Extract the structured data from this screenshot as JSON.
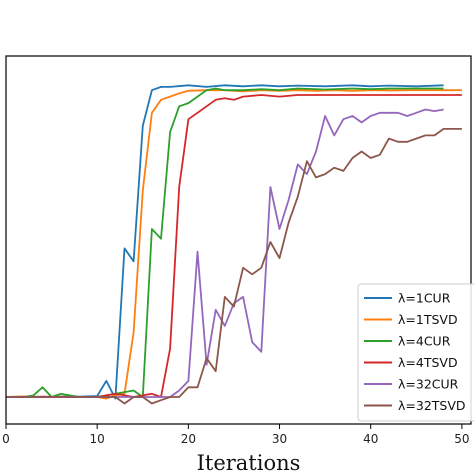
{
  "chart_data": {
    "type": "line",
    "title": "",
    "xlabel": "Iterations",
    "ylabel": "",
    "xlim": [
      0,
      51
    ],
    "ylim": [
      0,
      1
    ],
    "xticks": [
      "0",
      "10",
      "20",
      "30",
      "40",
      "50"
    ],
    "grid": false,
    "legend_position": "lower-right",
    "series": [
      {
        "name": "λ=1CUR",
        "color": "#1f77b4",
        "x": [
          0,
          2,
          4,
          6,
          8,
          10,
          11,
          12,
          13,
          14,
          15,
          16,
          17,
          18,
          20,
          22,
          24,
          26,
          28,
          30,
          32,
          35,
          38,
          40,
          42,
          45,
          48
        ],
        "y": [
          0.0,
          0.001,
          0.0,
          0.002,
          0.001,
          0.003,
          0.05,
          -0.005,
          0.46,
          0.42,
          0.84,
          0.95,
          0.96,
          0.96,
          0.965,
          0.96,
          0.965,
          0.962,
          0.965,
          0.962,
          0.964,
          0.962,
          0.965,
          0.962,
          0.964,
          0.962,
          0.965
        ]
      },
      {
        "name": "λ=1TSVD",
        "color": "#ff7f0e",
        "x": [
          0,
          2,
          4,
          6,
          8,
          10,
          11,
          12,
          13,
          14,
          15,
          16,
          17,
          18,
          19,
          20,
          22,
          24,
          26,
          28,
          30,
          32,
          34,
          36,
          38,
          40,
          42,
          44,
          46,
          48,
          50
        ],
        "y": [
          0.0,
          0.002,
          0.0,
          0.001,
          0.0,
          0.0,
          -0.005,
          0.005,
          0.01,
          0.2,
          0.64,
          0.88,
          0.92,
          0.93,
          0.94,
          0.948,
          0.95,
          0.95,
          0.946,
          0.95,
          0.948,
          0.95,
          0.948,
          0.95,
          0.948,
          0.95,
          0.949,
          0.95,
          0.95,
          0.95,
          0.95
        ]
      },
      {
        "name": "λ=4CUR",
        "color": "#2ca02c",
        "x": [
          0,
          2,
          3,
          4,
          5,
          6,
          8,
          10,
          12,
          14,
          15,
          16,
          17,
          18,
          19,
          20,
          21,
          22,
          23,
          24,
          26,
          28,
          30,
          32,
          35,
          38,
          40,
          42,
          45,
          48
        ],
        "y": [
          0.0,
          0.0,
          0.005,
          0.03,
          0.0,
          0.01,
          0.0,
          0.0,
          0.01,
          0.02,
          0.0,
          0.52,
          0.49,
          0.82,
          0.9,
          0.91,
          0.93,
          0.95,
          0.955,
          0.95,
          0.95,
          0.953,
          0.95,
          0.955,
          0.952,
          0.955,
          0.953,
          0.955,
          0.955,
          0.955
        ]
      },
      {
        "name": "λ=4TSVD",
        "color": "#d62728",
        "x": [
          0,
          2,
          4,
          6,
          8,
          10,
          12,
          14,
          15,
          16,
          17,
          18,
          19,
          20,
          21,
          22,
          23,
          24,
          25,
          26,
          28,
          30,
          32,
          34,
          36,
          38,
          40,
          42,
          44,
          46,
          48,
          50
        ],
        "y": [
          0.0,
          0.0,
          0.001,
          0.0,
          0.0,
          0.0,
          0.01,
          0.0,
          0.005,
          0.01,
          0.0,
          0.15,
          0.65,
          0.86,
          0.88,
          0.9,
          0.92,
          0.925,
          0.92,
          0.93,
          0.935,
          0.93,
          0.935,
          0.935,
          0.935,
          0.935,
          0.935,
          0.935,
          0.935,
          0.935,
          0.935,
          0.935
        ]
      },
      {
        "name": "λ=32CUR",
        "color": "#9467bd",
        "x": [
          0,
          5,
          10,
          15,
          18,
          19,
          20,
          21,
          22,
          23,
          24,
          25,
          26,
          27,
          28,
          29,
          30,
          31,
          32,
          33,
          34,
          35,
          36,
          37,
          38,
          39,
          40,
          41,
          42,
          43,
          44,
          45,
          46,
          47,
          48
        ],
        "y": [
          0.0,
          0.0,
          0.0,
          0.0,
          0.0,
          0.02,
          0.05,
          0.45,
          0.1,
          0.27,
          0.22,
          0.29,
          0.31,
          0.17,
          0.14,
          0.65,
          0.52,
          0.61,
          0.72,
          0.69,
          0.76,
          0.87,
          0.81,
          0.86,
          0.87,
          0.85,
          0.87,
          0.88,
          0.88,
          0.88,
          0.87,
          0.88,
          0.89,
          0.885,
          0.89
        ]
      },
      {
        "name": "λ=32TSVD",
        "color": "#8c564b",
        "x": [
          0,
          5,
          10,
          12,
          13,
          14,
          15,
          16,
          17,
          18,
          19,
          20,
          21,
          22,
          23,
          24,
          25,
          26,
          27,
          28,
          29,
          30,
          31,
          32,
          33,
          34,
          35,
          36,
          37,
          38,
          39,
          40,
          41,
          42,
          43,
          44,
          45,
          46,
          47,
          48,
          49,
          50
        ],
        "y": [
          0.0,
          0.0,
          0.0,
          0.0,
          -0.02,
          0.0,
          0.0,
          -0.02,
          -0.01,
          0.0,
          0.0,
          0.03,
          0.03,
          0.12,
          0.08,
          0.31,
          0.28,
          0.4,
          0.38,
          0.4,
          0.48,
          0.43,
          0.54,
          0.62,
          0.73,
          0.68,
          0.69,
          0.71,
          0.7,
          0.74,
          0.76,
          0.74,
          0.75,
          0.8,
          0.79,
          0.79,
          0.8,
          0.81,
          0.81,
          0.83,
          0.83,
          0.83
        ]
      }
    ]
  }
}
